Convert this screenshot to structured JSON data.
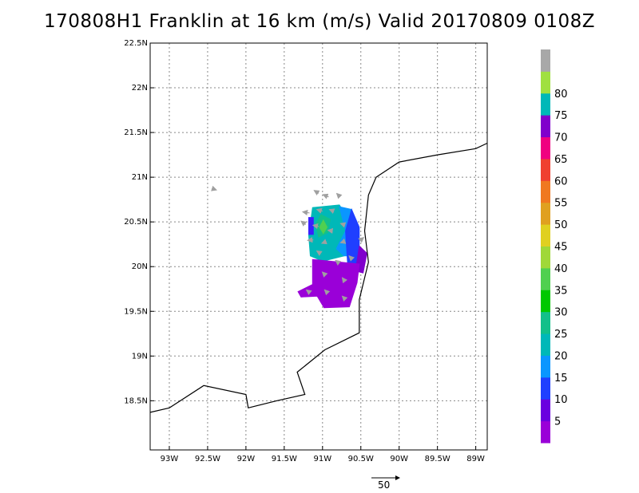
{
  "title": "170808H1 Franklin at 16 km (m/s) Valid 20170809 0108Z",
  "map": {
    "lon_range": [
      -93.25,
      -88.85
    ],
    "lat_range": [
      17.95,
      22.5
    ],
    "lon_ticks": [
      {
        "value": -93.0,
        "label": "93W"
      },
      {
        "value": -92.5,
        "label": "92.5W"
      },
      {
        "value": -92.0,
        "label": "92W"
      },
      {
        "value": -91.5,
        "label": "91.5W"
      },
      {
        "value": -91.0,
        "label": "91W"
      },
      {
        "value": -90.5,
        "label": "90.5W"
      },
      {
        "value": -90.0,
        "label": "90W"
      },
      {
        "value": -89.5,
        "label": "89.5W"
      },
      {
        "value": -89.0,
        "label": "89W"
      }
    ],
    "lat_ticks": [
      {
        "value": 18.5,
        "label": "18.5N"
      },
      {
        "value": 19.0,
        "label": "19N"
      },
      {
        "value": 19.5,
        "label": "19.5N"
      },
      {
        "value": 20.0,
        "label": "20N"
      },
      {
        "value": 20.5,
        "label": "20.5N"
      },
      {
        "value": 21.0,
        "label": "21N"
      },
      {
        "value": 21.5,
        "label": "21.5N"
      },
      {
        "value": 22.0,
        "label": "22N"
      },
      {
        "value": 22.5,
        "label": "22.5N"
      }
    ],
    "grid": true,
    "coastline": [
      [
        -93.25,
        18.37
      ],
      [
        -93.0,
        18.42
      ],
      [
        -92.55,
        18.67
      ],
      [
        -92.0,
        18.57
      ],
      [
        -91.97,
        18.42
      ],
      [
        -91.6,
        18.5
      ],
      [
        -91.23,
        18.57
      ],
      [
        -91.33,
        18.82
      ],
      [
        -90.97,
        19.07
      ],
      [
        -90.52,
        19.26
      ],
      [
        -90.52,
        19.63
      ],
      [
        -90.4,
        20.05
      ],
      [
        -90.45,
        20.4
      ],
      [
        -90.4,
        20.8
      ],
      [
        -90.3,
        21.0
      ],
      [
        -90.0,
        21.17
      ],
      [
        -89.5,
        21.25
      ],
      [
        -89.0,
        21.32
      ],
      [
        -88.85,
        21.38
      ]
    ],
    "wind_regions": [
      {
        "color": "#00b8b8",
        "poly": [
          [
            -91.18,
            20.35
          ],
          [
            -91.13,
            20.66
          ],
          [
            -90.78,
            20.69
          ],
          [
            -90.62,
            20.48
          ],
          [
            -90.72,
            20.12
          ],
          [
            -91.0,
            20.06
          ],
          [
            -91.16,
            20.12
          ]
        ]
      },
      {
        "color": "#12c08a",
        "poly": [
          [
            -91.09,
            20.47
          ],
          [
            -91.02,
            20.58
          ],
          [
            -90.9,
            20.53
          ],
          [
            -90.93,
            20.38
          ],
          [
            -91.05,
            20.33
          ]
        ]
      },
      {
        "color": "#50d050",
        "poly": [
          [
            -91.04,
            20.44
          ],
          [
            -90.99,
            20.52
          ],
          [
            -90.94,
            20.44
          ],
          [
            -90.99,
            20.37
          ]
        ]
      },
      {
        "color": "#0a96ff",
        "poly": [
          [
            -90.78,
            20.67
          ],
          [
            -90.62,
            20.64
          ],
          [
            -90.57,
            20.12
          ],
          [
            -90.72,
            20.12
          ],
          [
            -90.82,
            20.2
          ],
          [
            -90.7,
            20.4
          ]
        ]
      },
      {
        "color": "#1f3fff",
        "poly": [
          [
            -90.62,
            20.64
          ],
          [
            -90.52,
            20.44
          ],
          [
            -90.52,
            20.0
          ],
          [
            -90.67,
            20.0
          ],
          [
            -90.7,
            20.4
          ]
        ]
      },
      {
        "color": "#3a1fff",
        "poly": [
          [
            -91.18,
            20.55
          ],
          [
            -91.12,
            20.55
          ],
          [
            -91.12,
            20.36
          ],
          [
            -91.18,
            20.36
          ]
        ]
      },
      {
        "color": "#8000cc",
        "poly": [
          [
            -90.52,
            20.23
          ],
          [
            -90.42,
            20.15
          ],
          [
            -90.47,
            19.93
          ],
          [
            -90.57,
            19.95
          ]
        ]
      },
      {
        "color": "#9a00d8",
        "poly": [
          [
            -91.13,
            20.08
          ],
          [
            -90.52,
            20.03
          ],
          [
            -90.55,
            19.82
          ],
          [
            -90.62,
            19.63
          ],
          [
            -90.65,
            19.55
          ],
          [
            -90.98,
            19.54
          ],
          [
            -91.07,
            19.67
          ],
          [
            -91.28,
            19.66
          ],
          [
            -91.32,
            19.72
          ],
          [
            -91.13,
            19.8
          ]
        ]
      }
    ],
    "wind_vectors": [
      {
        "lon": -92.43,
        "lat": 20.87,
        "u": 6,
        "v": -2
      },
      {
        "lon": -91.05,
        "lat": 20.82,
        "u": -8,
        "v": 5
      },
      {
        "lon": -90.92,
        "lat": 20.78,
        "u": -10,
        "v": 4
      },
      {
        "lon": -90.77,
        "lat": 20.78,
        "u": -6,
        "v": 6
      },
      {
        "lon": -91.17,
        "lat": 20.6,
        "u": -12,
        "v": 2
      },
      {
        "lon": -91.0,
        "lat": 20.62,
        "u": -10,
        "v": 3
      },
      {
        "lon": -90.85,
        "lat": 20.62,
        "u": -8,
        "v": 3
      },
      {
        "lon": -91.22,
        "lat": 20.47,
        "u": -8,
        "v": 6
      },
      {
        "lon": -91.05,
        "lat": 20.45,
        "u": -10,
        "v": 2
      },
      {
        "lon": -90.87,
        "lat": 20.4,
        "u": -8,
        "v": 1
      },
      {
        "lon": -90.72,
        "lat": 20.47,
        "u": -6,
        "v": 2
      },
      {
        "lon": -91.12,
        "lat": 20.3,
        "u": -10,
        "v": -1
      },
      {
        "lon": -90.95,
        "lat": 20.28,
        "u": -8,
        "v": -3
      },
      {
        "lon": -90.72,
        "lat": 20.28,
        "u": -6,
        "v": -2
      },
      {
        "lon": -90.5,
        "lat": 20.3,
        "u": 5,
        "v": 4
      },
      {
        "lon": -91.03,
        "lat": 20.15,
        "u": -6,
        "v": 4
      },
      {
        "lon": -90.8,
        "lat": 20.05,
        "u": -4,
        "v": 3
      },
      {
        "lon": -90.63,
        "lat": 20.1,
        "u": -3,
        "v": 3
      },
      {
        "lon": -90.98,
        "lat": 19.92,
        "u": -3,
        "v": 3
      },
      {
        "lon": -90.72,
        "lat": 19.85,
        "u": -3,
        "v": 4
      },
      {
        "lon": -91.18,
        "lat": 19.72,
        "u": -4,
        "v": 3
      },
      {
        "lon": -90.95,
        "lat": 19.72,
        "u": -3,
        "v": 3
      },
      {
        "lon": -90.72,
        "lat": 19.65,
        "u": -3,
        "v": 3
      }
    ],
    "reference_vector": {
      "value": 50,
      "label": "50"
    }
  },
  "colorbar": {
    "colors": [
      "#9a00d8",
      "#6a00e0",
      "#1f3fff",
      "#0a96ff",
      "#00b8b8",
      "#12c08a",
      "#00c800",
      "#50d050",
      "#a0d838",
      "#e0d020",
      "#e0a020",
      "#f07820",
      "#f04030",
      "#f00080",
      "#8000cc",
      "#00b8b8",
      "#a0e040",
      "#a8a8a8"
    ],
    "labels": [
      "5",
      "10",
      "15",
      "20",
      "25",
      "30",
      "35",
      "40",
      "45",
      "50",
      "55",
      "60",
      "65",
      "70",
      "75",
      "80"
    ]
  }
}
